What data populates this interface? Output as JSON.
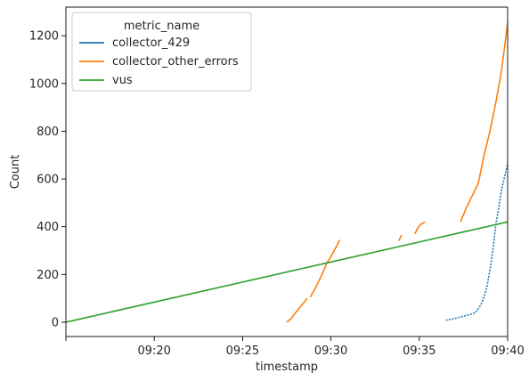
{
  "chart_data": {
    "type": "line",
    "xlabel": "timestamp",
    "ylabel": "Count",
    "x_unit": "time (HH:MM)",
    "xlim": [
      "09:15",
      "09:40"
    ],
    "ylim": [
      -60,
      1320
    ],
    "x_ticks": [
      "09:15",
      "09:20",
      "09:25",
      "09:30",
      "09:35",
      "09:40"
    ],
    "x_tick_labels": [
      "",
      "09:20",
      "09:25",
      "09:30",
      "09:35",
      "09:40"
    ],
    "y_ticks": [
      0,
      200,
      400,
      600,
      800,
      1000,
      1200
    ],
    "y_tick_labels": [
      "0",
      "200",
      "400",
      "600",
      "800",
      "1000",
      "1200"
    ],
    "grid": false,
    "legend": {
      "title": "metric_name",
      "placement": "top-left"
    },
    "series": [
      {
        "name": "collector_429",
        "color": "#1f77b4",
        "style": "sparse",
        "segments": [
          [
            [
              "09:36:30",
              8
            ],
            [
              "09:37:00",
              15
            ],
            [
              "09:37:30",
              25
            ],
            [
              "09:38:00",
              35
            ],
            [
              "09:38:10",
              40
            ],
            [
              "09:38:20",
              55
            ],
            [
              "09:38:30",
              75
            ],
            [
              "09:38:40",
              105
            ],
            [
              "09:38:50",
              150
            ],
            [
              "09:39:00",
              220
            ],
            [
              "09:39:10",
              300
            ],
            [
              "09:39:20",
              410
            ],
            [
              "09:39:30",
              480
            ],
            [
              "09:39:40",
              560
            ],
            [
              "09:39:50",
              610
            ],
            [
              "09:40:00",
              665
            ]
          ]
        ]
      },
      {
        "name": "collector_other_errors",
        "color": "#ff7f0e",
        "style": "solid",
        "segments": [
          [
            [
              "09:27:30",
              0
            ],
            [
              "09:27:45",
              15
            ],
            [
              "09:28:00",
              40
            ],
            [
              "09:28:20",
              70
            ],
            [
              "09:28:40",
              100
            ]
          ],
          [
            [
              "09:28:50",
              105
            ],
            [
              "09:29:10",
              150
            ],
            [
              "09:29:30",
              200
            ],
            [
              "09:29:45",
              245
            ],
            [
              "09:30:00",
              275
            ],
            [
              "09:30:20",
              320
            ],
            [
              "09:30:30",
              345
            ]
          ],
          [
            [
              "09:33:50",
              340
            ],
            [
              "09:34:00",
              365
            ]
          ],
          [
            [
              "09:34:45",
              370
            ],
            [
              "09:34:55",
              395
            ],
            [
              "09:35:05",
              410
            ],
            [
              "09:35:20",
              420
            ]
          ],
          [
            [
              "09:37:20",
              420
            ],
            [
              "09:37:40",
              480
            ],
            [
              "09:38:00",
              530
            ],
            [
              "09:38:20",
              580
            ],
            [
              "09:38:40",
              700
            ],
            [
              "09:39:00",
              800
            ],
            [
              "09:39:20",
              920
            ],
            [
              "09:39:40",
              1060
            ],
            [
              "09:40:00",
              1255
            ]
          ]
        ]
      },
      {
        "name": "vus",
        "color": "#2ca02c",
        "style": "solid",
        "segments": [
          [
            [
              "09:15:00",
              0
            ],
            [
              "09:40:00",
              420
            ]
          ]
        ]
      }
    ]
  }
}
